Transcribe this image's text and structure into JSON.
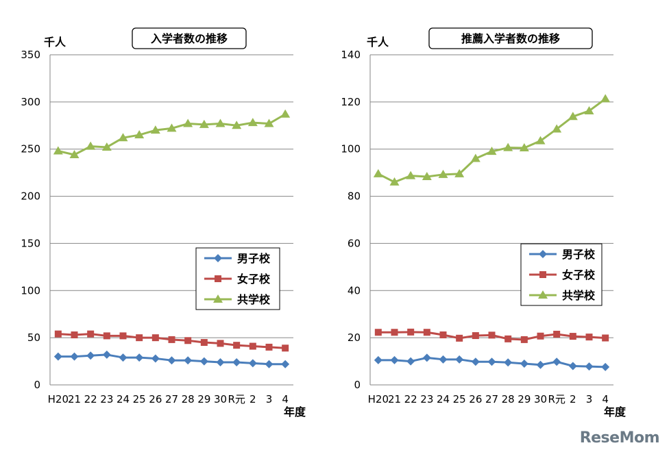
{
  "watermark": "ReseMom",
  "colors": {
    "boys": "#4a7ebb",
    "girls": "#be4b48",
    "coed": "#98b954",
    "grid": "#868686"
  },
  "chart_data": [
    {
      "type": "line",
      "title": "入学者数の推移",
      "unit_label": "千人",
      "xlabel": "年度",
      "categories": [
        "H20",
        "21",
        "22",
        "23",
        "24",
        "25",
        "26",
        "27",
        "28",
        "29",
        "30",
        "R元",
        "2",
        "3",
        "4"
      ],
      "ylim": [
        0,
        350
      ],
      "yticks": [
        0,
        50,
        100,
        150,
        200,
        250,
        300,
        350
      ],
      "grid": true,
      "legend_position": "right-middle",
      "series": [
        {
          "name": "男子校",
          "marker": "diamond",
          "color": "#4a7ebb",
          "values": [
            30,
            30,
            31,
            32,
            29,
            29,
            28,
            26,
            26,
            25,
            24,
            24,
            23,
            22,
            22
          ]
        },
        {
          "name": "女子校",
          "marker": "square",
          "color": "#be4b48",
          "values": [
            54,
            53,
            54,
            52,
            52,
            50,
            50,
            48,
            47,
            45,
            44,
            42,
            41,
            40,
            39
          ]
        },
        {
          "name": "共学校",
          "marker": "triangle",
          "color": "#98b954",
          "values": [
            248,
            244,
            253,
            252,
            262,
            265,
            270,
            272,
            277,
            276,
            277,
            275,
            278,
            277,
            287
          ]
        }
      ]
    },
    {
      "type": "line",
      "title": "推薦入学者数の推移",
      "unit_label": "千人",
      "xlabel": "年度",
      "categories": [
        "H20",
        "21",
        "22",
        "23",
        "24",
        "25",
        "26",
        "27",
        "28",
        "29",
        "30",
        "R元",
        "2",
        "3",
        "4"
      ],
      "ylim": [
        0,
        140
      ],
      "yticks": [
        0,
        20,
        40,
        60,
        80,
        100,
        120,
        140
      ],
      "grid": true,
      "legend_position": "right-middle",
      "series": [
        {
          "name": "男子校",
          "marker": "diamond",
          "color": "#4a7ebb",
          "values": [
            10.5,
            10.5,
            10,
            11.5,
            10.8,
            10.8,
            9.8,
            9.8,
            9.5,
            9,
            8.5,
            9.8,
            8,
            7.8,
            7.6
          ]
        },
        {
          "name": "女子校",
          "marker": "square",
          "color": "#be4b48",
          "values": [
            22.3,
            22.3,
            22.4,
            22.3,
            21.2,
            19.8,
            20.9,
            21.1,
            19.5,
            19.2,
            20.7,
            21.5,
            20.6,
            20.3,
            19.9
          ]
        },
        {
          "name": "共学校",
          "marker": "triangle",
          "color": "#98b954",
          "values": [
            89.5,
            86,
            88.7,
            88.3,
            89.2,
            89.5,
            96,
            99,
            100.6,
            100.5,
            103.5,
            108.5,
            113.8,
            116.2,
            121.3
          ]
        }
      ]
    }
  ]
}
